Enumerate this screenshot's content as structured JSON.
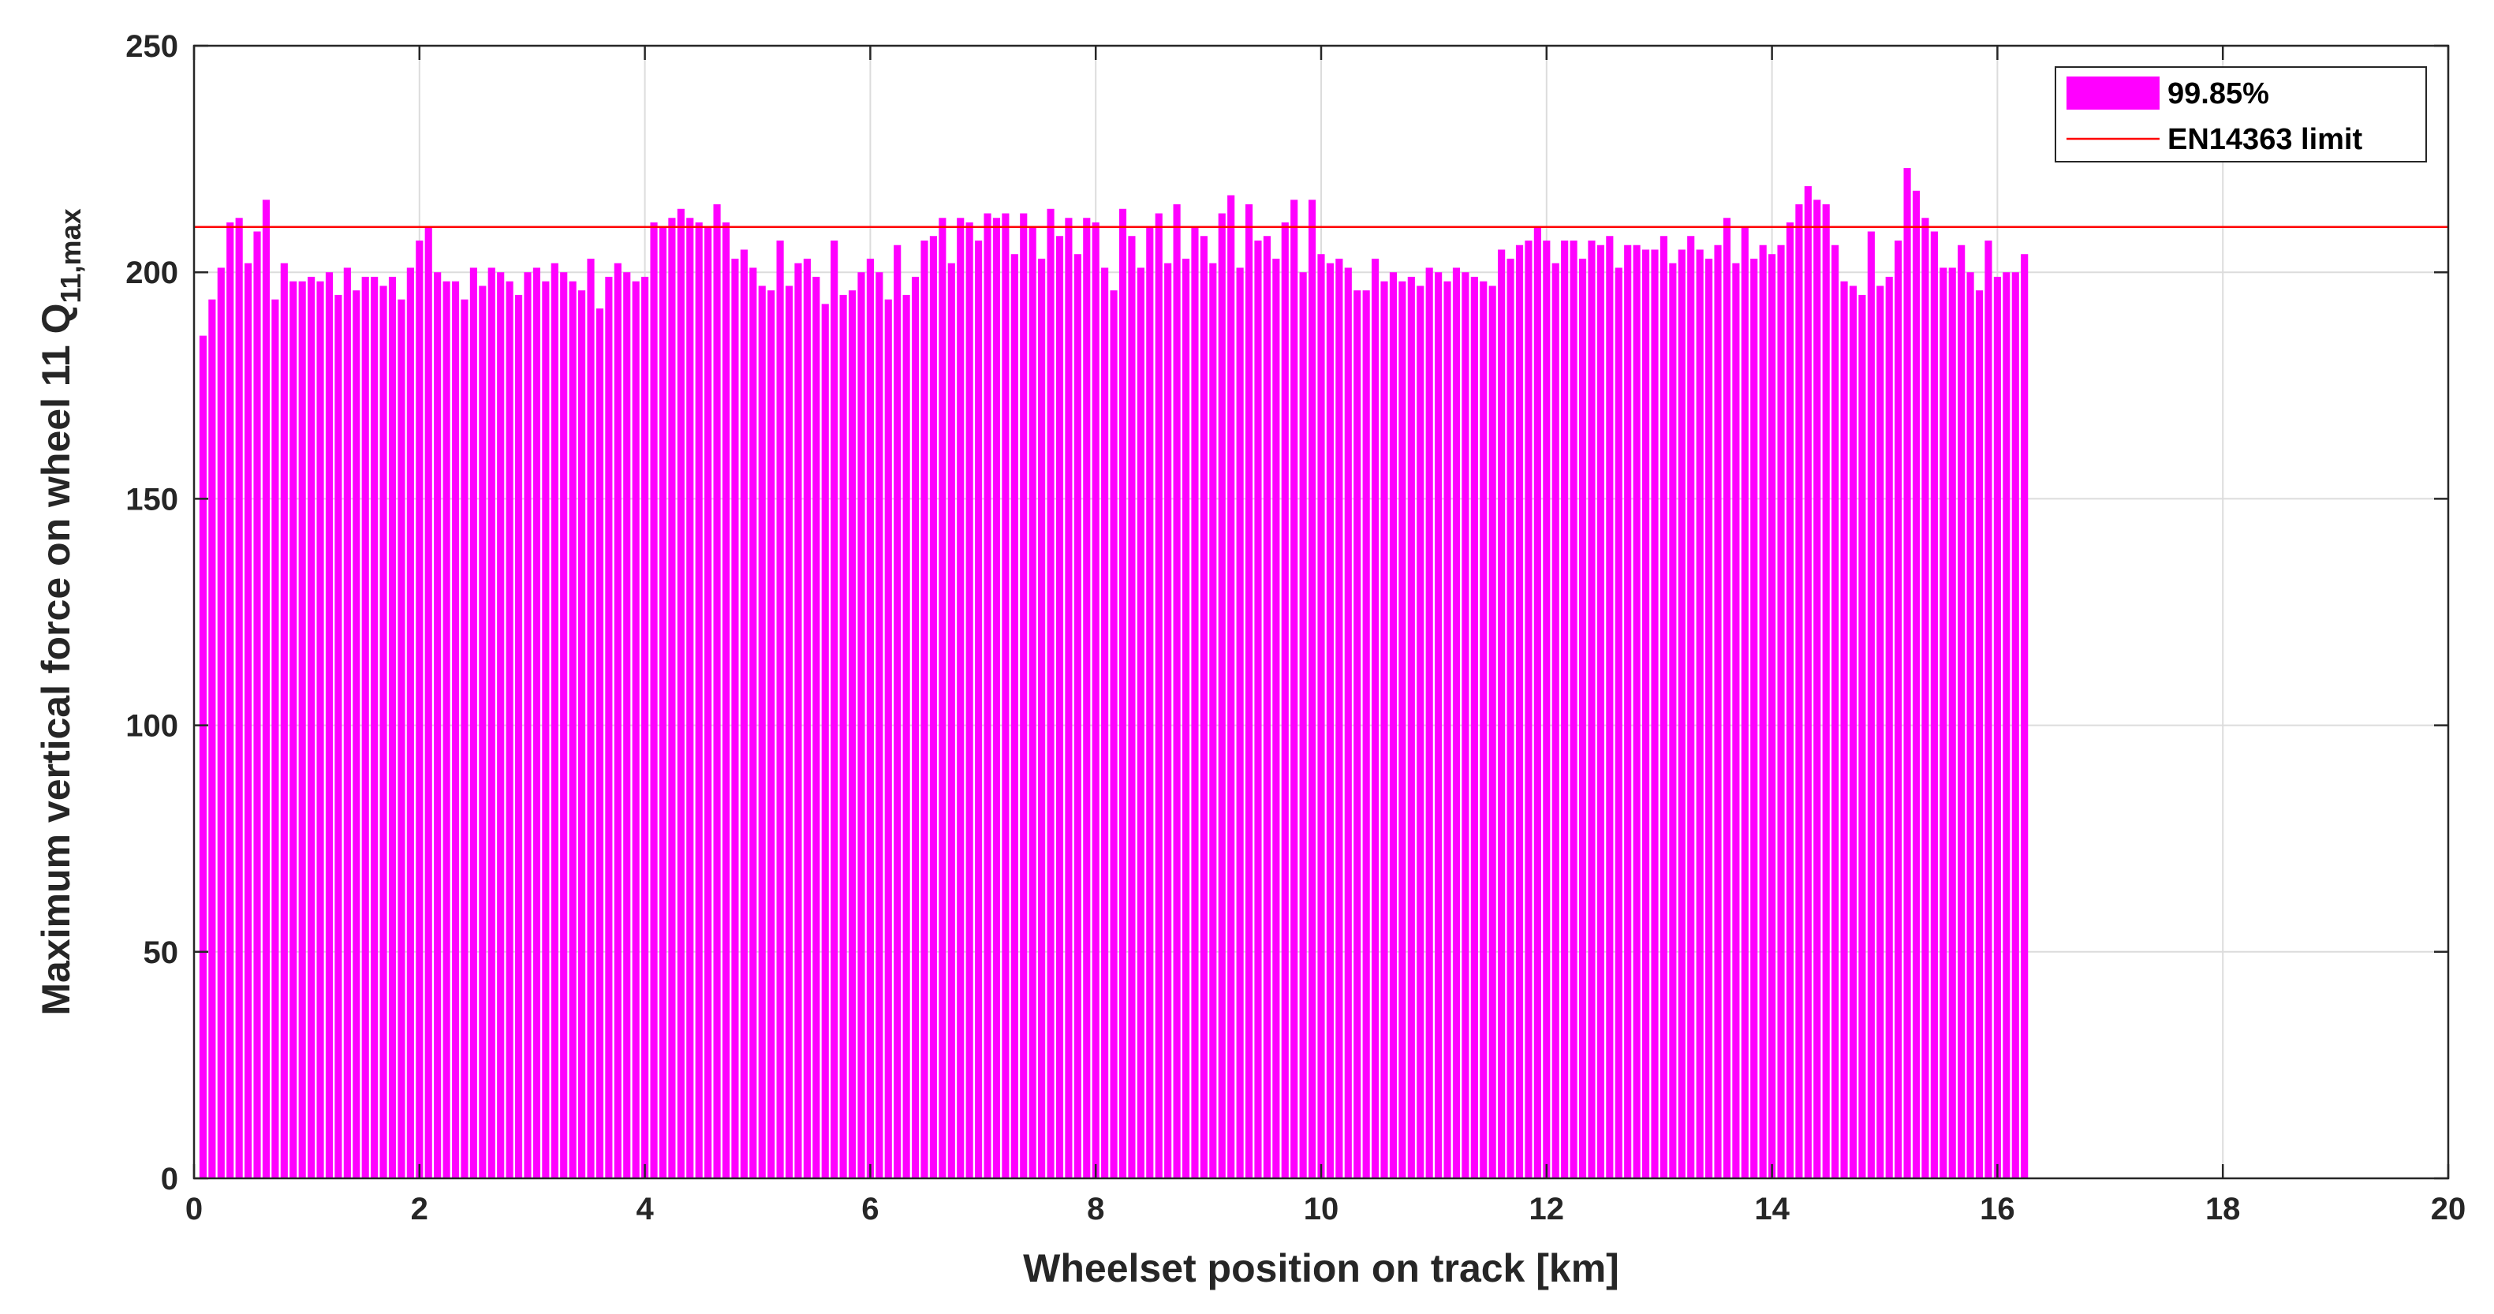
{
  "chart_data": {
    "type": "bar",
    "xlabel": "Wheelset position on track [km]",
    "ylabel_main": "Maximum vertical force on wheel 11 Q",
    "ylabel_subscript": "11,max",
    "xlim": [
      0,
      20
    ],
    "ylim": [
      0,
      250
    ],
    "xticks": [
      0,
      2,
      4,
      6,
      8,
      10,
      12,
      14,
      16,
      18,
      20
    ],
    "yticks": [
      0,
      50,
      100,
      150,
      200,
      250
    ],
    "grid": true,
    "legend_placement": "top-right",
    "bar_width_km": 0.064,
    "x_step_km": 0.08,
    "series": [
      {
        "name": "99.85%",
        "color": "#ff00ff",
        "x_start_km": 0.08,
        "values": [
          186,
          194,
          201,
          211,
          212,
          202,
          209,
          216,
          194,
          202,
          198,
          198,
          199,
          198,
          200,
          195,
          201,
          196,
          199,
          199,
          197,
          199,
          194,
          201,
          207,
          210,
          200,
          198,
          198,
          194,
          201,
          197,
          201,
          200,
          198,
          195,
          200,
          201,
          198,
          202,
          200,
          198,
          196,
          203,
          192,
          199,
          202,
          200,
          198,
          199,
          211,
          210,
          212,
          214,
          212,
          211,
          210,
          215,
          211,
          203,
          205,
          201,
          197,
          196,
          207,
          197,
          202,
          203,
          199,
          193,
          207,
          195,
          196,
          200,
          203,
          200,
          194,
          206,
          195,
          199,
          207,
          208,
          212,
          202,
          212,
          211,
          207,
          213,
          212,
          213,
          204,
          213,
          210,
          203,
          214,
          208,
          212,
          204,
          212,
          211,
          201,
          196,
          214,
          208,
          201,
          210,
          213,
          202,
          215,
          203,
          210,
          208,
          202,
          213,
          217,
          201,
          215,
          207,
          208,
          203,
          211,
          216,
          200,
          216,
          204,
          202,
          203,
          201,
          196,
          196,
          203,
          198,
          200,
          198,
          199,
          197,
          201,
          200,
          198,
          201,
          200,
          199,
          198,
          197,
          205,
          203,
          206,
          207,
          210,
          207,
          202,
          207,
          207,
          203,
          207,
          206,
          208,
          201,
          206,
          206,
          205,
          205,
          208,
          202,
          205,
          208,
          205,
          203,
          206,
          212,
          202,
          210,
          203,
          206,
          204,
          206,
          211,
          215,
          219,
          216,
          215,
          206,
          198,
          197,
          195,
          209,
          197,
          199,
          207,
          223,
          218,
          212,
          209,
          201,
          201,
          206,
          200,
          196,
          207,
          199,
          200,
          200,
          204
        ]
      }
    ],
    "limit_line": {
      "name": "EN14363 limit",
      "value": 210,
      "color": "#ff0000"
    }
  }
}
